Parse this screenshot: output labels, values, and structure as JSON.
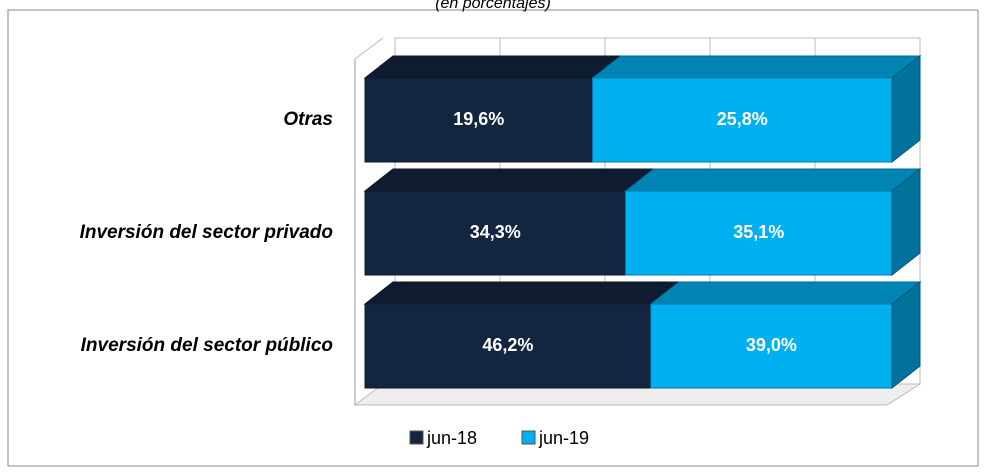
{
  "chart_data": {
    "type": "bar",
    "orientation": "horizontal",
    "stacking": "percent",
    "three_d": true,
    "subtitle": "(en porcentajes)",
    "categories": [
      "Otras",
      "Inversión del sector privado",
      "Inversión del sector público"
    ],
    "series": [
      {
        "name": "jun-18",
        "color": "#14253f",
        "values": [
          19.6,
          34.3,
          46.2
        ],
        "value_labels": [
          "19,6%",
          "34,3%",
          "46,2%"
        ]
      },
      {
        "name": "jun-19",
        "color": "#00b0f0",
        "values": [
          25.8,
          35.1,
          39.0
        ],
        "value_labels": [
          "25,8%",
          "35,1%",
          "39,0%"
        ]
      }
    ],
    "legend": "bottom"
  }
}
